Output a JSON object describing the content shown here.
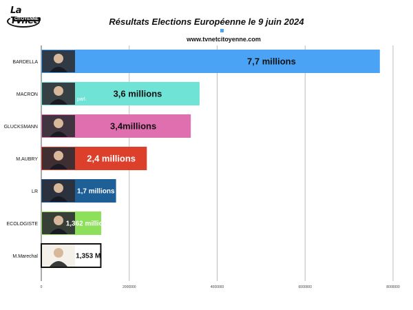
{
  "logo": {
    "name": "La Tvnet",
    "sub": "CITOYENNE"
  },
  "title": "Résultats Elections Européenne le 9 juin 2024",
  "source": "www.tvnetcitoyenne.com",
  "chart_data": {
    "type": "bar",
    "orientation": "horizontal",
    "title": "Résultats Elections Européenne le 9 juin 2024",
    "categories": [
      "BARDELLA",
      "MACRON",
      "GLUCKSMANN",
      "M.AUBRY",
      "LR",
      "ECOLOGISTE",
      "M.Marechal"
    ],
    "values": [
      7700000,
      3600000,
      3400000,
      2400000,
      1700000,
      1362000,
      1353000
    ],
    "data_labels": [
      "7,7 millions",
      "3,6 millions",
      "3,4millions",
      "2,4 millions",
      "1,7 millions",
      "1,362 millions",
      "1,353 M"
    ],
    "colors": [
      "#4aa3f5",
      "#6ee3d6",
      "#e06fb0",
      "#dc3f2a",
      "#1f5f98",
      "#8ce05a",
      "#ffffff"
    ],
    "label_colors": [
      "#111111",
      "#111111",
      "#111111",
      "#ffffff",
      "#ffffff",
      "#ffffff",
      "#111111"
    ],
    "photo_badge": [
      "",
      "parl.",
      "",
      "",
      "",
      "",
      ""
    ],
    "x_ticks": [
      0,
      2000000,
      4000000,
      6000000,
      8000000
    ],
    "x_tick_labels": [
      "0",
      "2000000",
      "4000000",
      "6000000",
      "8000000"
    ],
    "xlim": [
      0,
      8000000
    ],
    "grid": true,
    "legend": "top-center"
  }
}
